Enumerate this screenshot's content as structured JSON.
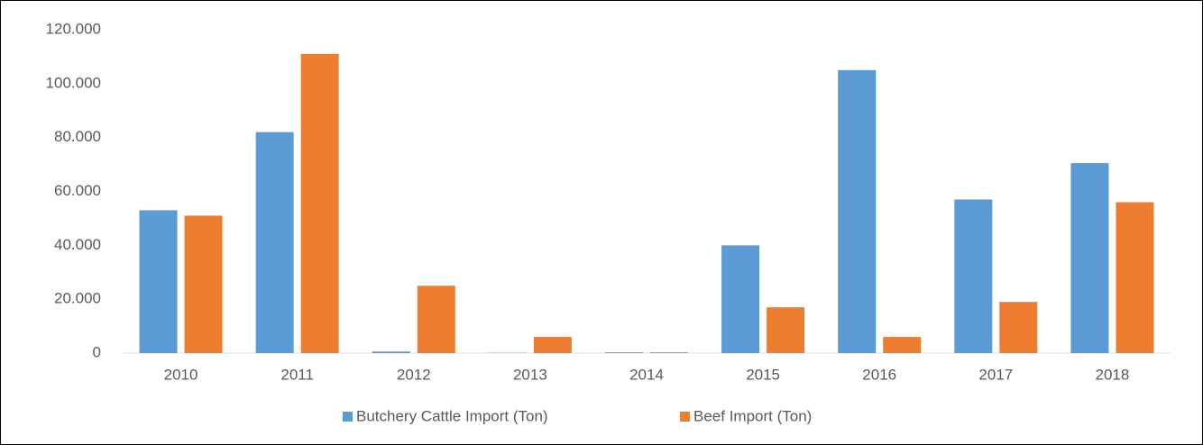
{
  "chart_data": {
    "type": "bar",
    "categories": [
      "2010",
      "2011",
      "2012",
      "2013",
      "2014",
      "2015",
      "2016",
      "2017",
      "2018"
    ],
    "series": [
      {
        "name": "Butchery Cattle Import (Ton)",
        "color": "#5b9bd5",
        "values": [
          53000,
          82000,
          600,
          100,
          300,
          40000,
          105000,
          57000,
          70500
        ]
      },
      {
        "name": "Beef Import (Ton)",
        "color": "#ed7d31",
        "values": [
          51000,
          111000,
          25000,
          6000,
          300,
          17000,
          6000,
          19000,
          56000
        ]
      }
    ],
    "ylim": [
      0,
      120000
    ],
    "yticks": [
      0,
      {
        "value": 20000,
        "label": "20.000"
      },
      {
        "value": 40000,
        "label": "40.000"
      },
      {
        "value": 60000,
        "label": "60.000"
      },
      {
        "value": 80000,
        "label": "80.000"
      },
      {
        "value": 100000,
        "label": "100.000"
      },
      {
        "value": 120000,
        "label": "120.000"
      }
    ],
    "grid": false,
    "legend": "bottom"
  }
}
